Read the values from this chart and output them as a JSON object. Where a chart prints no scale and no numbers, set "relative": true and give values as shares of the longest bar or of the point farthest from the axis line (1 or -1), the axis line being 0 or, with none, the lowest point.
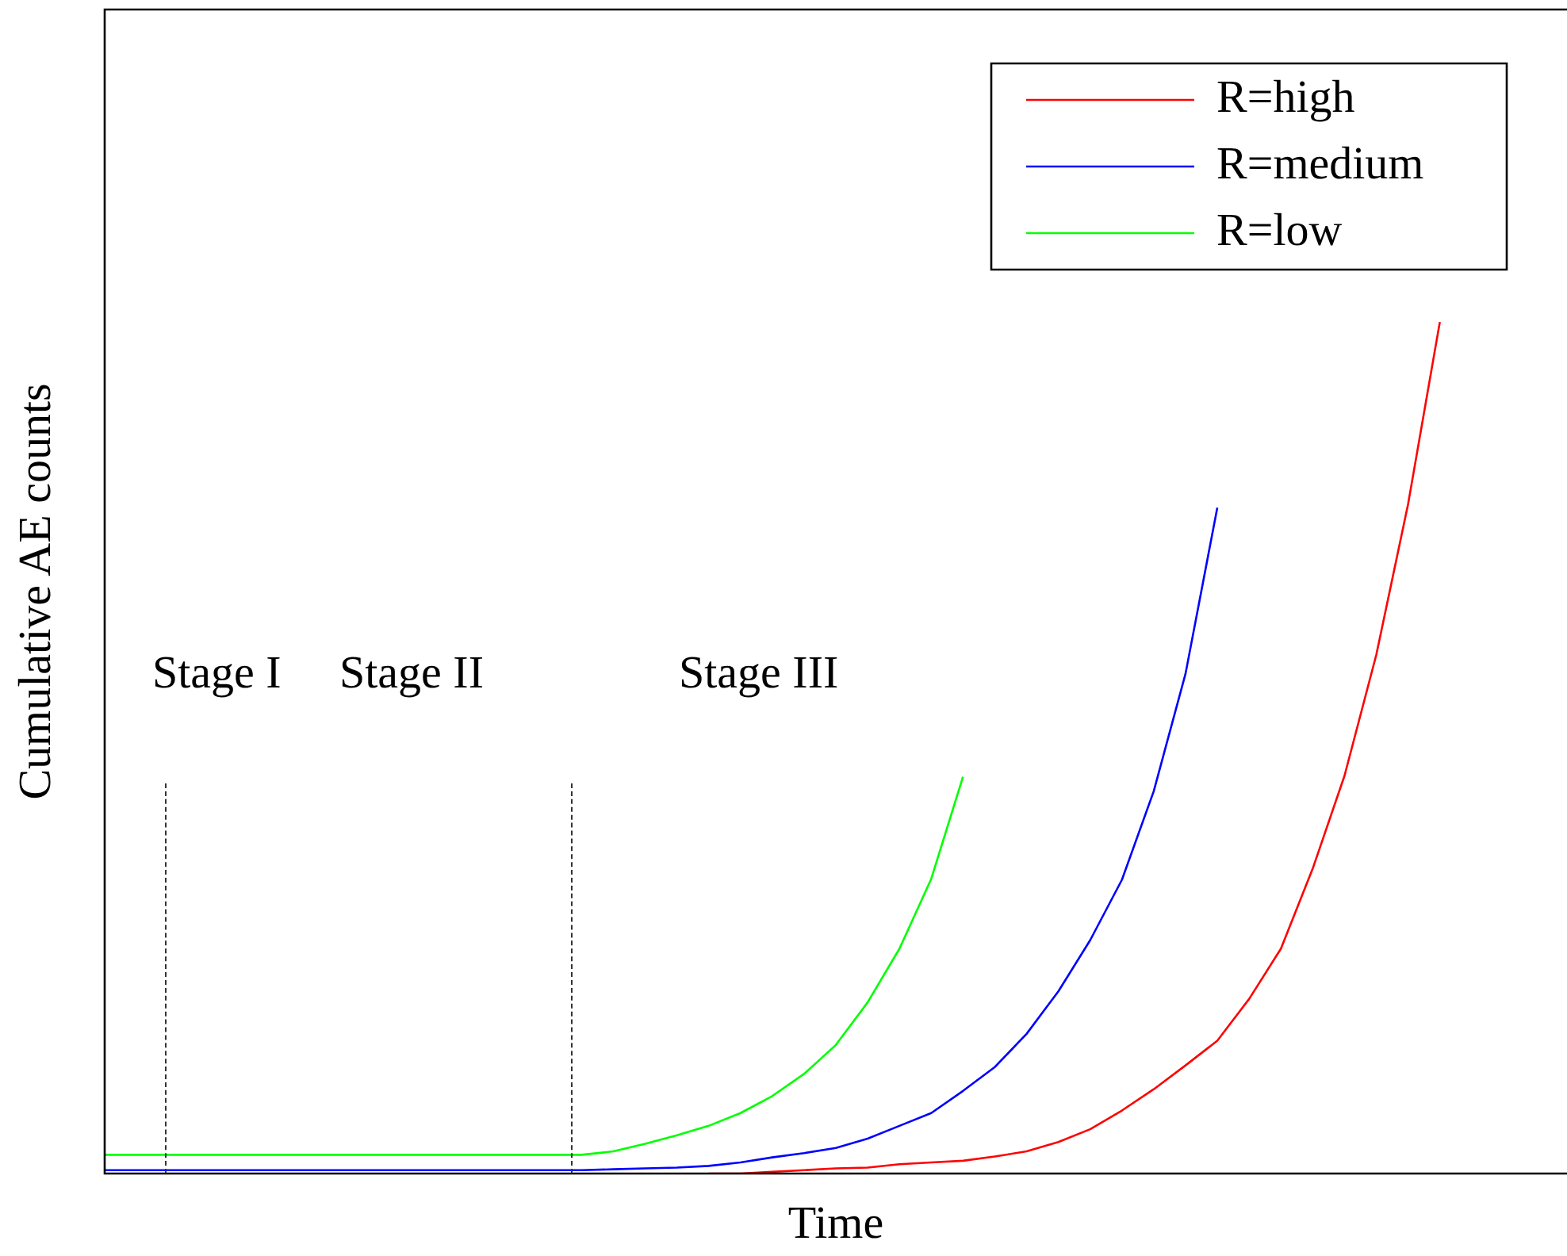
{
  "chart_data": {
    "type": "line",
    "relative": true,
    "xlabel": "Time",
    "ylabel": "Cumulative AE counts",
    "legend": "top right",
    "marker": "none",
    "line_style": "solid",
    "annotations": [
      "Stage I",
      "Stage II",
      "Stage III"
    ],
    "categories": [
      null,
      null,
      null,
      null,
      null,
      null,
      null,
      null,
      null,
      null,
      null,
      null,
      null,
      null,
      null,
      null,
      null,
      null,
      null,
      null,
      null,
      null,
      null,
      null,
      null,
      null,
      null,
      null,
      null,
      null,
      null,
      null,
      null,
      null,
      null,
      null,
      null,
      null,
      null,
      null,
      null,
      null,
      null,
      null,
      null,
      null,
      null
    ],
    "series": [
      {
        "name": "R=high",
        "color": "#ff0000",
        "values": [
          null,
          null,
          null,
          null,
          null,
          null,
          null,
          null,
          null,
          null,
          null,
          null,
          null,
          null,
          null,
          null,
          null,
          null,
          null,
          0,
          0,
          0.002,
          0.004,
          0.006,
          0.007,
          0.011,
          0.013,
          0.015,
          0.02,
          0.026,
          0.037,
          0.052,
          0.074,
          0.099,
          0.127,
          0.156,
          0.205,
          0.264,
          0.358,
          0.467,
          0.609,
          0.786,
          1,
          null,
          null,
          null,
          null
        ]
      },
      {
        "name": "R=medium",
        "color": "#0000ff",
        "values": [
          0.004,
          0.004,
          0.004,
          0.004,
          0.004,
          0.004,
          0.004,
          0.004,
          0.004,
          0.004,
          0.004,
          0.004,
          0.004,
          0.004,
          0.004,
          0.004,
          0.005,
          0.006,
          0.007,
          0.009,
          0.013,
          0.019,
          0.024,
          0.03,
          0.041,
          0.056,
          0.071,
          0.097,
          0.125,
          0.164,
          0.214,
          0.274,
          0.345,
          0.449,
          0.587,
          0.782,
          null,
          null,
          null,
          null,
          null,
          null,
          null,
          null,
          null,
          null,
          null
        ]
      },
      {
        "name": "R=low",
        "color": "#00ff00",
        "values": [
          0.022,
          0.022,
          0.022,
          0.022,
          0.022,
          0.022,
          0.022,
          0.022,
          0.022,
          0.022,
          0.022,
          0.022,
          0.022,
          0.022,
          0.022,
          0.022,
          0.026,
          0.035,
          0.045,
          0.056,
          0.071,
          0.091,
          0.117,
          0.151,
          0.201,
          0.264,
          0.346,
          0.466,
          null,
          null,
          null,
          null,
          null,
          null,
          null,
          null,
          null,
          null,
          null,
          null,
          null,
          null,
          null,
          null,
          null,
          null,
          null
        ]
      }
    ]
  }
}
